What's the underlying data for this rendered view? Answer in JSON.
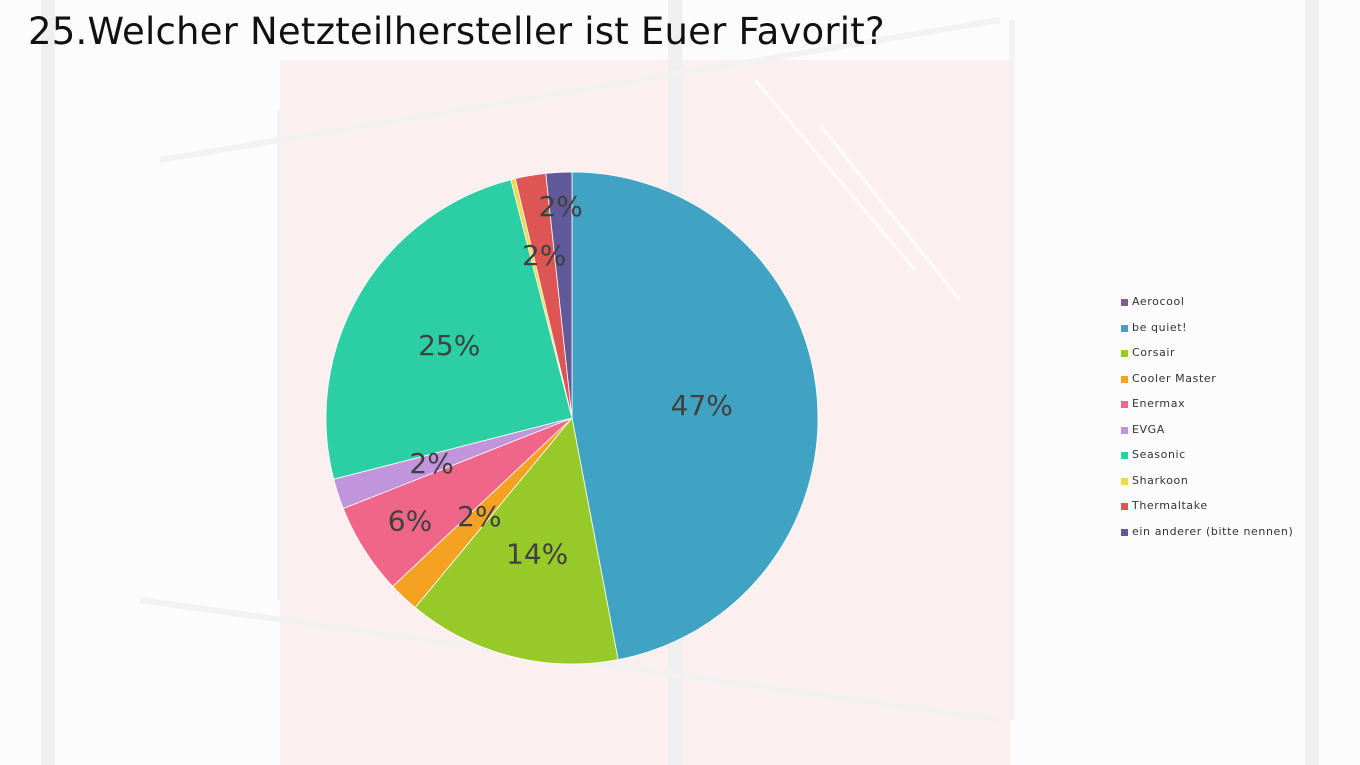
{
  "slide": {
    "title": "25.Welcher Netzteilhersteller ist Euer Favorit?"
  },
  "chart_data": {
    "type": "pie",
    "title": "25.Welcher Netzteilhersteller ist Euer Favorit?",
    "start_angle_deg": 0,
    "direction": "clockwise",
    "legend_position": "right",
    "slices": [
      {
        "label": "be quiet!",
        "value": 47,
        "display": "47%",
        "color": "#41A3C3"
      },
      {
        "label": "Corsair",
        "value": 14,
        "display": "14%",
        "color": "#97C928"
      },
      {
        "label": "Cooler Master",
        "value": 2,
        "display": "2%",
        "color": "#F5A122"
      },
      {
        "label": "Enermax",
        "value": 6,
        "display": "6%",
        "color": "#EF6688"
      },
      {
        "label": "EVGA",
        "value": 2,
        "display": "2%",
        "color": "#C095DC"
      },
      {
        "label": "Seasonic",
        "value": 25,
        "display": "25%",
        "color": "#2CCFA4"
      },
      {
        "label": "Sharkoon",
        "value": 0.3,
        "display": "",
        "color": "#F1D84B"
      },
      {
        "label": "Thermaltake",
        "value": 2,
        "display": "2%",
        "color": "#DE5653"
      },
      {
        "label": "ein anderer (bitte nennen)",
        "value": 1.7,
        "display": "2%",
        "color": "#61599A"
      }
    ],
    "legend": [
      {
        "label": "Aerocool",
        "color": "#7F5E8E"
      },
      {
        "label": "be quiet!",
        "color": "#41A3C3"
      },
      {
        "label": "Corsair",
        "color": "#97C928"
      },
      {
        "label": "Cooler Master",
        "color": "#F5A122"
      },
      {
        "label": "Enermax",
        "color": "#EF6688"
      },
      {
        "label": "EVGA",
        "color": "#C095DC"
      },
      {
        "label": "Seasonic",
        "color": "#2CCFA4"
      },
      {
        "label": "Sharkoon",
        "color": "#F1D84B"
      },
      {
        "label": "Thermaltake",
        "color": "#DE5653"
      },
      {
        "label": "ein anderer (bitte nennen)",
        "color": "#61599A"
      }
    ]
  }
}
